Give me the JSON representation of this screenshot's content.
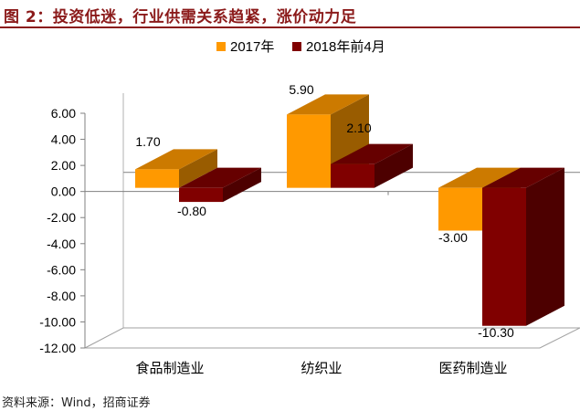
{
  "title": "图 2：投资低迷，行业供需关系趋紧，涨价动力足",
  "source": "资料来源：Wind，招商证券",
  "colors": {
    "title": "#8b1a1a",
    "series_2017": "#ff9900",
    "series_2018": "#800000"
  },
  "chart_data": {
    "type": "bar",
    "categories": [
      "食品制造业",
      "纺织业",
      "医药制造业"
    ],
    "series": [
      {
        "name": "2017年",
        "values": [
          1.7,
          5.9,
          -3.0
        ],
        "labels": [
          "1.70",
          "5.90",
          "-3.00"
        ]
      },
      {
        "name": "2018年前4月",
        "values": [
          -0.8,
          2.1,
          -10.3
        ],
        "labels": [
          "-0.80",
          "2.10",
          "-10.30"
        ]
      }
    ],
    "y_ticks": [
      "6.00",
      "4.00",
      "2.00",
      "0.00",
      "-2.00",
      "-4.00",
      "-6.00",
      "-8.00",
      "-10.00",
      "-12.00"
    ],
    "ylim": [
      -12,
      6
    ],
    "legend_position": "top",
    "style": "3d"
  }
}
